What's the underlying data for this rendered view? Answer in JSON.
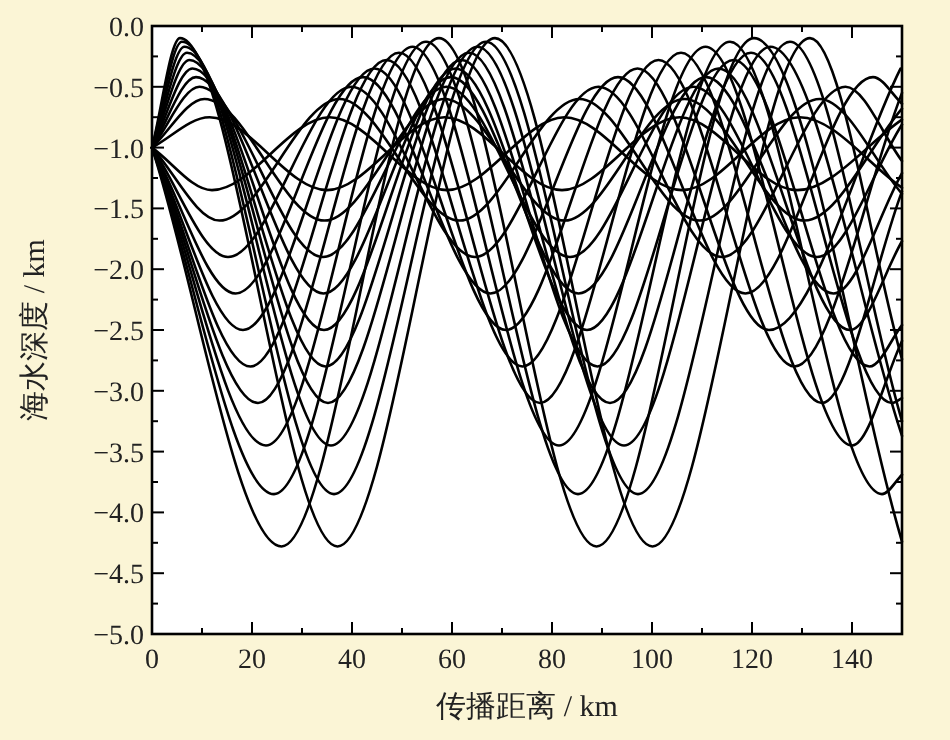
{
  "chart_data": {
    "type": "line",
    "xlabel": "传播距离 / km",
    "ylabel": "海水深度 / km",
    "xlim": [
      0,
      150
    ],
    "ylim": [
      -5,
      0
    ],
    "grid": false,
    "line_style": "solid",
    "xticks": [
      0,
      {
        "value": 10,
        "label": null
      },
      20,
      {
        "value": 30,
        "label": null
      },
      40,
      {
        "value": 50,
        "label": null
      },
      60,
      {
        "value": 70,
        "label": null
      },
      80,
      {
        "value": 90,
        "label": null
      },
      100,
      {
        "value": 110,
        "label": null
      },
      120,
      {
        "value": 130,
        "label": null
      },
      140,
      {
        "value": 150,
        "label": null
      }
    ],
    "yticks": [
      {
        "value": 0,
        "label": "0.0"
      },
      {
        "value": -0.25,
        "label": null
      },
      {
        "value": -0.5,
        "label": "−0.5"
      },
      {
        "value": -0.75,
        "label": null
      },
      {
        "value": -1,
        "label": "−1.0"
      },
      {
        "value": -1.25,
        "label": null
      },
      {
        "value": -1.5,
        "label": "−1.5"
      },
      {
        "value": -1.75,
        "label": null
      },
      {
        "value": -2,
        "label": "−2.0"
      },
      {
        "value": -2.25,
        "label": null
      },
      {
        "value": -2.5,
        "label": "−2.5"
      },
      {
        "value": -2.75,
        "label": null
      },
      {
        "value": -3,
        "label": "−3.0"
      },
      {
        "value": -3.25,
        "label": null
      },
      {
        "value": -3.5,
        "label": "−3.5"
      },
      {
        "value": -3.75,
        "label": null
      },
      {
        "value": -4,
        "label": "−4.0"
      },
      {
        "value": -4.25,
        "label": null
      },
      {
        "value": -4.5,
        "label": "−4.5"
      },
      {
        "value": -4.75,
        "label": null
      },
      {
        "value": -5,
        "label": "−5.0"
      }
    ],
    "series": [
      {
        "color": "#000000",
        "x": [
          0,
          11.5,
          35,
          58.5,
          82,
          105.5,
          129,
          150
        ],
        "values": [
          -1,
          -0.75,
          -1.35,
          -0.75,
          -1.35,
          -0.75,
          -1.35,
          -0.77
        ]
      },
      {
        "color": "#000000",
        "x": [
          0,
          12,
          35.5,
          59,
          82.5,
          106,
          129.5,
          150
        ],
        "values": [
          -1,
          -1.35,
          -0.75,
          -1.35,
          -0.75,
          -1.35,
          -0.75,
          -1.33
        ]
      },
      {
        "color": "#000000",
        "x": [
          0,
          10.5,
          34.5,
          58.5,
          82.5,
          106.5,
          130.5,
          150
        ],
        "values": [
          -1,
          -0.6,
          -1.6,
          -0.6,
          -1.6,
          -0.6,
          -1.6,
          -0.68
        ]
      },
      {
        "color": "#000000",
        "x": [
          0,
          13.5,
          37.5,
          61.5,
          85.5,
          109.5,
          133.5,
          150
        ],
        "values": [
          -1,
          -1.6,
          -0.6,
          -1.6,
          -0.6,
          -1.6,
          -0.6,
          -1.38
        ]
      },
      {
        "color": "#000000",
        "x": [
          0,
          9.5,
          34.2,
          58.9,
          83.6,
          108.3,
          133,
          150
        ],
        "values": [
          -1,
          -0.5,
          -1.9,
          -0.5,
          -1.9,
          -0.5,
          -1.9,
          -0.81
        ]
      },
      {
        "color": "#000000",
        "x": [
          0,
          15.2,
          39.9,
          64.6,
          89.3,
          114,
          138.7,
          150
        ],
        "values": [
          -1,
          -1.9,
          -0.5,
          -1.9,
          -0.5,
          -1.9,
          -0.5,
          -1.11
        ]
      },
      {
        "color": "#000000",
        "x": [
          0,
          8.8,
          34.3,
          59.8,
          85.3,
          110.8,
          136.3,
          150
        ],
        "values": [
          -1,
          -0.42,
          -2.2,
          -0.42,
          -2.2,
          -0.42,
          -2.2,
          -1.21
        ]
      },
      {
        "color": "#000000",
        "x": [
          0,
          16.7,
          42.2,
          67.7,
          93.2,
          118.7,
          144.2,
          150
        ],
        "values": [
          -1,
          -2.2,
          -0.42,
          -2.2,
          -0.42,
          -2.2,
          -0.42,
          -0.64
        ]
      },
      {
        "color": "#000000",
        "x": [
          0,
          8.1,
          34.4,
          60.7,
          87,
          113.3,
          139.6,
          150
        ],
        "values": [
          -1,
          -0.35,
          -2.5,
          -0.35,
          -2.5,
          -0.35,
          -2.5,
          -1.77
        ]
      },
      {
        "color": "#000000",
        "x": [
          0,
          18.2,
          44.5,
          70.8,
          97.1,
          123.4,
          149.7
        ],
        "values": [
          -1,
          -2.5,
          -0.35,
          -2.5,
          -0.35,
          -2.5,
          -0.35
        ]
      },
      {
        "color": "#000000",
        "x": [
          0,
          7.5,
          34.7,
          61.9,
          89.1,
          116.3,
          143.5,
          150
        ],
        "values": [
          -1,
          -0.28,
          -2.8,
          -0.28,
          -2.8,
          -0.28,
          -2.8,
          -2.46
        ]
      },
      {
        "color": "#000000",
        "x": [
          0,
          19.7,
          46.9,
          74.1,
          101.3,
          128.5,
          150
        ],
        "values": [
          -1,
          -2.8,
          -0.28,
          -2.8,
          -0.28,
          -2.8,
          -0.55
        ]
      },
      {
        "color": "#000000",
        "x": [
          0,
          7,
          35.2,
          63.4,
          91.6,
          119.8,
          148,
          150
        ],
        "values": [
          -1,
          -0.22,
          -3.1,
          -0.22,
          -3.1,
          -0.22,
          -3.1,
          -3.06
        ]
      },
      {
        "color": "#000000",
        "x": [
          0,
          21.2,
          49.4,
          77.6,
          105.8,
          134,
          150
        ],
        "values": [
          -1,
          -3.1,
          -0.22,
          -3.1,
          -0.22,
          -3.1,
          -1.36
        ]
      },
      {
        "color": "#000000",
        "x": [
          0,
          6.5,
          35.8,
          65.1,
          94.4,
          123.7,
          150
        ],
        "values": [
          -1,
          -0.17,
          -3.45,
          -0.17,
          -3.45,
          -0.17,
          -3.37
        ]
      },
      {
        "color": "#000000",
        "x": [
          0,
          22.8,
          52.1,
          81.4,
          110.7,
          140,
          150
        ],
        "values": [
          -1,
          -3.45,
          -0.17,
          -3.45,
          -0.17,
          -3.45,
          -2.59
        ]
      },
      {
        "color": "#000000",
        "x": [
          0,
          6,
          36.4,
          66.8,
          97.2,
          127.6,
          150
        ],
        "values": [
          -1,
          -0.13,
          -3.85,
          -0.13,
          -3.85,
          -0.13,
          -3.25
        ]
      },
      {
        "color": "#000000",
        "x": [
          0,
          24.4,
          54.8,
          85.2,
          115.6,
          146,
          150
        ],
        "values": [
          -1,
          -3.85,
          -0.13,
          -3.85,
          -0.13,
          -3.85,
          -3.69
        ]
      },
      {
        "color": "#000000",
        "x": [
          0,
          5.6,
          37.1,
          68.6,
          100.1,
          131.6,
          150
        ],
        "values": [
          -1,
          -0.1,
          -4.28,
          -0.1,
          -4.28,
          -0.1,
          -2.74
        ]
      },
      {
        "color": "#000000",
        "x": [
          0,
          25.9,
          57.4,
          88.9,
          120.4,
          150
        ],
        "values": [
          -1,
          -4.28,
          -0.1,
          -4.28,
          -0.1,
          -4.24
        ]
      }
    ]
  }
}
